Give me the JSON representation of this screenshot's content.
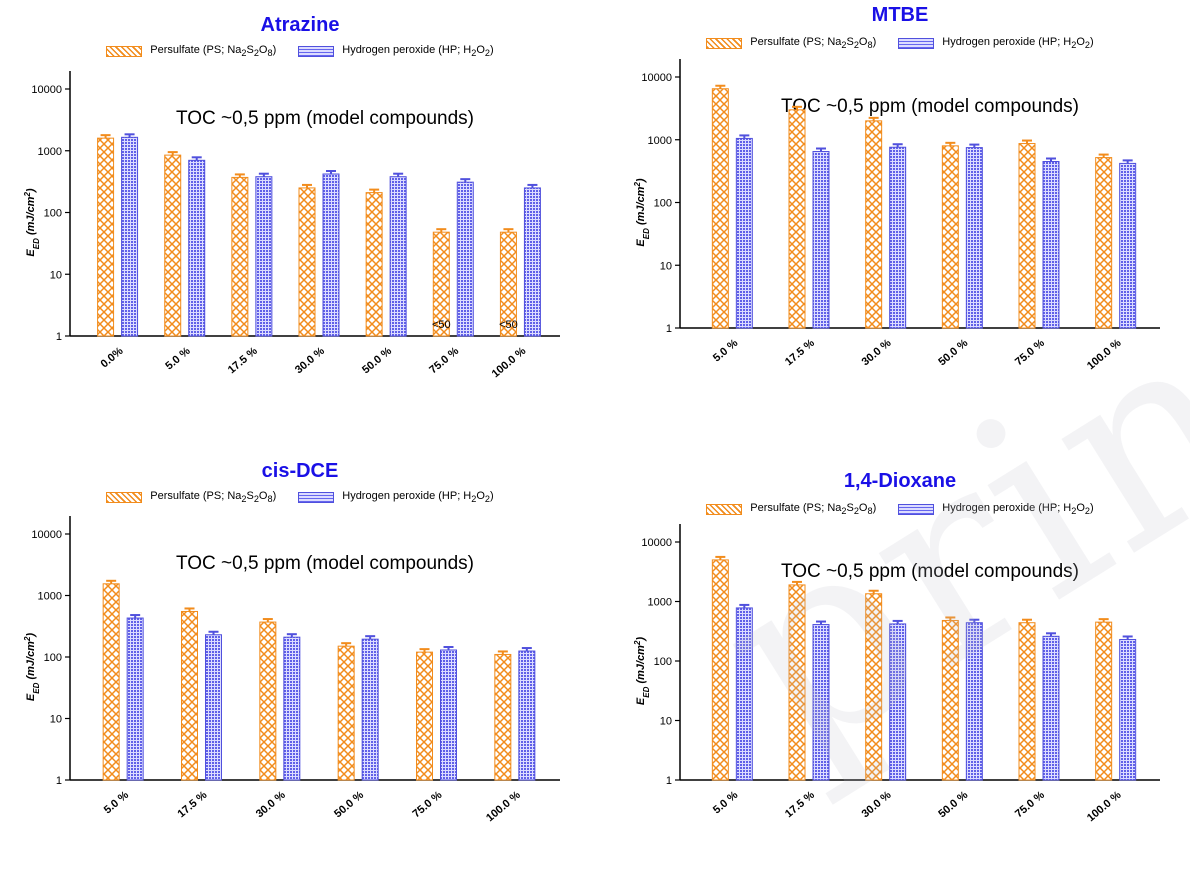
{
  "watermark": "print",
  "colors": {
    "ps": "#f28c1c",
    "hp": "#5050dd",
    "title": "#1a10e6"
  },
  "legend": {
    "ps_text": "Persulfate (PS; Na",
    "ps_sub1": "2",
    "ps_mid": "S",
    "ps_sub2": "2",
    "ps_end": "O",
    "ps_sub3": "8",
    "ps_close": ")",
    "hp_text": "Hydrogen peroxide (HP; H",
    "hp_sub1": "2",
    "hp_mid": "O",
    "hp_sub2": "2",
    "hp_close": ")"
  },
  "chart_data": [
    {
      "type": "bar",
      "title": "Atrazine",
      "annotation": "TOC ~0,5 ppm (model compounds)",
      "ylabel": "E_ED (mJ/cm^2)",
      "yscale": "log",
      "ylim": [
        1,
        10000
      ],
      "yticks": [
        "1",
        "10",
        "100",
        "1000",
        "10000"
      ],
      "categories": [
        "0.0%",
        "5.0 %",
        "17.5 %",
        "30.0 %",
        "50.0 %",
        "75.0 %",
        "100.0 %"
      ],
      "series": [
        {
          "name": "Persulfate (PS; Na2S2O8)",
          "values": [
            1600,
            850,
            370,
            250,
            210,
            48,
            48
          ]
        },
        {
          "name": "Hydrogen peroxide (HP; H2O2)",
          "values": [
            1650,
            700,
            380,
            420,
            380,
            310,
            250
          ]
        }
      ],
      "bar_labels": [
        null,
        null,
        null,
        null,
        null,
        "<50",
        "<50"
      ]
    },
    {
      "type": "bar",
      "title": "MTBE",
      "annotation": "TOC ~0,5 ppm (model compounds)",
      "ylabel": "E_ED (mJ/cm^2)",
      "yscale": "log",
      "ylim": [
        1,
        10000
      ],
      "yticks": [
        "1",
        "10",
        "100",
        "1000",
        "10000"
      ],
      "categories": [
        "5.0 %",
        "17.5 %",
        "30.0 %",
        "50.0 %",
        "75.0 %",
        "100.0 %"
      ],
      "series": [
        {
          "name": "Persulfate (PS; Na2S2O8)",
          "values": [
            6500,
            3000,
            2000,
            800,
            870,
            520
          ]
        },
        {
          "name": "Hydrogen peroxide (HP; H2O2)",
          "values": [
            1050,
            650,
            760,
            750,
            450,
            420
          ]
        }
      ],
      "bar_labels": [
        null,
        null,
        null,
        null,
        null,
        null
      ]
    },
    {
      "type": "bar",
      "title": "cis-DCE",
      "annotation": "TOC ~0,5 ppm (model compounds)",
      "ylabel": "E_ED (mJ/cm^2)",
      "yscale": "log",
      "ylim": [
        1,
        10000
      ],
      "yticks": [
        "1",
        "10",
        "100",
        "1000",
        "10000"
      ],
      "categories": [
        "5.0 %",
        "17.5 %",
        "30.0 %",
        "50.0 %",
        "75.0 %",
        "100.0 %"
      ],
      "series": [
        {
          "name": "Persulfate (PS; Na2S2O8)",
          "values": [
            1550,
            550,
            370,
            150,
            120,
            110
          ]
        },
        {
          "name": "Hydrogen peroxide (HP; H2O2)",
          "values": [
            430,
            230,
            210,
            195,
            130,
            125
          ]
        }
      ],
      "bar_labels": [
        null,
        null,
        null,
        null,
        null,
        null
      ]
    },
    {
      "type": "bar",
      "title": "1,4-Dioxane",
      "annotation": "TOC ~0,5 ppm (model compounds)",
      "ylabel": "E_ED (mJ/cm^2)",
      "yscale": "log",
      "ylim": [
        1,
        10000
      ],
      "yticks": [
        "1",
        "10",
        "100",
        "1000",
        "10000"
      ],
      "categories": [
        "5.0 %",
        "17.5 %",
        "30.0 %",
        "50.0 %",
        "75.0 %",
        "100.0 %"
      ],
      "series": [
        {
          "name": "Persulfate (PS; Na2S2O8)",
          "values": [
            5000,
            1900,
            1350,
            480,
            440,
            450
          ]
        },
        {
          "name": "Hydrogen peroxide (HP; H2O2)",
          "values": [
            780,
            410,
            420,
            440,
            260,
            230
          ]
        }
      ],
      "bar_labels": [
        null,
        null,
        null,
        null,
        null,
        null
      ]
    }
  ]
}
